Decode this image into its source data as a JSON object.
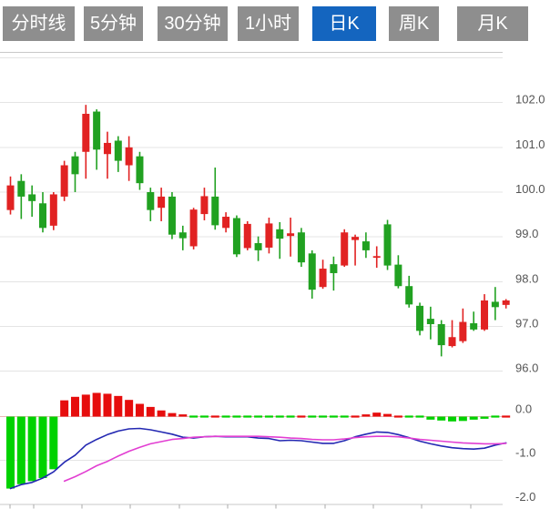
{
  "tabs": {
    "labels": [
      "分时线",
      "5分钟",
      "30分钟",
      "1小时",
      "日K",
      "周K",
      "月K"
    ],
    "selected_index": 4,
    "tab_color": "#8e8e8e",
    "selected_color": "#1465bf",
    "text_color": "#ffffff"
  },
  "chart_data": {
    "type": "candlestick",
    "title": "",
    "price_axis_labels": [
      "102.0",
      "101.0",
      "100.0",
      "99.0",
      "98.0",
      "97.0",
      "96.0"
    ],
    "price_gridlines": [
      103,
      102,
      101,
      100,
      99,
      98,
      97,
      96
    ],
    "price_range": [
      96,
      103
    ],
    "candles_ohlc": [
      [
        99.6,
        100.35,
        99.5,
        100.15
      ],
      [
        100.25,
        100.4,
        99.4,
        99.9
      ],
      [
        99.95,
        100.15,
        99.45,
        99.8
      ],
      [
        99.75,
        100.0,
        99.1,
        99.2
      ],
      [
        99.25,
        100.0,
        99.15,
        99.95
      ],
      [
        99.9,
        100.7,
        99.8,
        100.6
      ],
      [
        100.8,
        100.9,
        100.0,
        100.4
      ],
      [
        100.9,
        101.95,
        100.3,
        101.75
      ],
      [
        101.8,
        101.85,
        100.5,
        100.95
      ],
      [
        100.85,
        101.35,
        100.3,
        101.1
      ],
      [
        101.15,
        101.25,
        100.45,
        100.7
      ],
      [
        100.6,
        101.25,
        100.25,
        101.0
      ],
      [
        100.8,
        100.9,
        100.05,
        100.2
      ],
      [
        100.0,
        100.1,
        99.35,
        99.6
      ],
      [
        99.65,
        100.1,
        99.35,
        99.9
      ],
      [
        99.9,
        100.0,
        98.95,
        99.05
      ],
      [
        99.1,
        99.25,
        98.7,
        98.97
      ],
      [
        98.79,
        99.65,
        98.72,
        99.61
      ],
      [
        99.51,
        100.1,
        99.37,
        99.91
      ],
      [
        99.9,
        100.55,
        99.16,
        99.26
      ],
      [
        99.2,
        99.55,
        99.1,
        99.45
      ],
      [
        99.42,
        99.48,
        98.55,
        98.61
      ],
      [
        98.75,
        99.35,
        98.7,
        99.29
      ],
      [
        98.86,
        99.01,
        98.46,
        98.7
      ],
      [
        98.76,
        99.43,
        98.63,
        99.3
      ],
      [
        99.17,
        99.33,
        98.51,
        98.96
      ],
      [
        99.02,
        99.43,
        98.56,
        99.08
      ],
      [
        99.1,
        99.2,
        98.33,
        98.43
      ],
      [
        98.63,
        98.7,
        97.62,
        97.82
      ],
      [
        97.88,
        98.49,
        97.84,
        98.29
      ],
      [
        98.39,
        98.56,
        97.8,
        98.19
      ],
      [
        98.36,
        99.17,
        98.33,
        99.1
      ],
      [
        98.93,
        99.05,
        98.36,
        99.0
      ],
      [
        98.9,
        99.1,
        98.53,
        98.7
      ],
      [
        98.56,
        98.79,
        98.31,
        98.57
      ],
      [
        99.28,
        99.38,
        98.26,
        98.36
      ],
      [
        98.38,
        98.59,
        97.85,
        97.9
      ],
      [
        97.9,
        98.13,
        97.42,
        97.49
      ],
      [
        97.46,
        97.53,
        96.8,
        96.9
      ],
      [
        97.17,
        97.44,
        96.71,
        97.05
      ],
      [
        97.05,
        97.14,
        96.33,
        96.58
      ],
      [
        96.56,
        97.14,
        96.53,
        96.76
      ],
      [
        96.67,
        97.4,
        96.63,
        97.1
      ],
      [
        97.07,
        97.33,
        96.9,
        96.93
      ],
      [
        96.93,
        97.72,
        96.9,
        97.58
      ],
      [
        97.55,
        97.88,
        97.14,
        97.43
      ],
      [
        97.48,
        97.61,
        97.4,
        97.58
      ]
    ],
    "macd": {
      "axis_labels": [
        "0.0",
        "-1.0",
        "-2.0"
      ],
      "axis_values": [
        0,
        -1,
        -2
      ],
      "histogram": [
        -1.64,
        -1.54,
        -1.47,
        -1.4,
        -1.2,
        0.37,
        0.45,
        0.5,
        0.54,
        0.52,
        0.47,
        0.38,
        0.29,
        0.22,
        0.14,
        0.08,
        0.05,
        -0.02,
        -0.03,
        0.03,
        -0.01,
        -0.02,
        -0.03,
        -0.03,
        -0.03,
        -0.01,
        -0.01,
        0.02,
        -0.03,
        -0.04,
        -0.03,
        -0.01,
        0.03,
        0.05,
        0.09,
        0.06,
        0.02,
        -0.02,
        -0.04,
        -0.07,
        -0.09,
        -0.11,
        -0.1,
        -0.07,
        -0.05,
        -0.03,
        0.03
      ],
      "dif": [
        -1.64,
        -1.55,
        -1.5,
        -1.4,
        -1.26,
        -1.04,
        -0.88,
        -0.65,
        -0.52,
        -0.41,
        -0.33,
        -0.28,
        -0.27,
        -0.3,
        -0.35,
        -0.4,
        -0.47,
        -0.49,
        -0.46,
        -0.45,
        -0.46,
        -0.46,
        -0.46,
        -0.49,
        -0.5,
        -0.55,
        -0.54,
        -0.55,
        -0.58,
        -0.61,
        -0.61,
        -0.55,
        -0.46,
        -0.4,
        -0.35,
        -0.36,
        -0.41,
        -0.48,
        -0.56,
        -0.62,
        -0.67,
        -0.71,
        -0.73,
        -0.74,
        -0.72,
        -0.65,
        -0.6
      ],
      "dea": [
        null,
        null,
        null,
        null,
        null,
        -1.47,
        -1.37,
        -1.25,
        -1.12,
        -1.02,
        -0.9,
        -0.79,
        -0.7,
        -0.62,
        -0.57,
        -0.52,
        -0.5,
        -0.47,
        -0.46,
        -0.45,
        -0.45,
        -0.45,
        -0.45,
        -0.45,
        -0.46,
        -0.47,
        -0.49,
        -0.5,
        -0.52,
        -0.53,
        -0.53,
        -0.51,
        -0.48,
        -0.46,
        -0.45,
        -0.45,
        -0.46,
        -0.49,
        -0.52,
        -0.54,
        -0.56,
        -0.58,
        -0.6,
        -0.61,
        -0.62,
        -0.62,
        -0.61
      ]
    },
    "colors": {
      "up": "#e12222",
      "down": "#21a121",
      "macd_up": "#e60d0d",
      "macd_down": "#00d200",
      "dif_line": "#2328b2",
      "dea_line": "#e23ed2",
      "gridline": "#e4e4e4",
      "border": "#c8c8c8",
      "zero_line": "#eab7b7",
      "axis_text": "#555555",
      "tick": "#aaaaaa"
    },
    "legend_position": "none",
    "grid": true
  }
}
